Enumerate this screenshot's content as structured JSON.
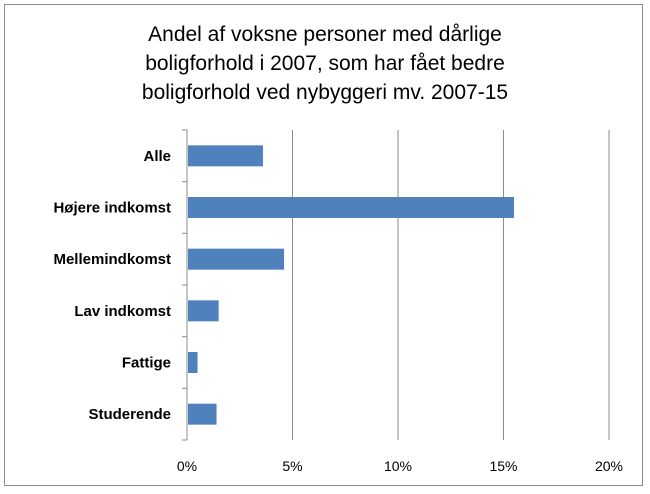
{
  "chart_data": {
    "type": "bar",
    "orientation": "horizontal",
    "title_lines": [
      "Andel af voksne personer med dårlige",
      "boligforhold i 2007, som har fået bedre",
      "boligforhold ved nybyggeri mv. 2007-15"
    ],
    "categories": [
      "Alle",
      "Højere indkomst",
      "Mellemindkomst",
      "Lav indkomst",
      "Fattige",
      "Studerende"
    ],
    "values": [
      3.6,
      15.5,
      4.6,
      1.5,
      0.5,
      1.4
    ],
    "value_unit": "%",
    "xlim": [
      0,
      20
    ],
    "x_ticks": [
      0,
      5,
      10,
      15,
      20
    ],
    "x_tick_labels": [
      "0%",
      "5%",
      "10%",
      "15%",
      "20%"
    ],
    "xlabel": "",
    "ylabel": "",
    "grid": "vertical",
    "legend": "none",
    "bar_color": "#4f81bd"
  }
}
